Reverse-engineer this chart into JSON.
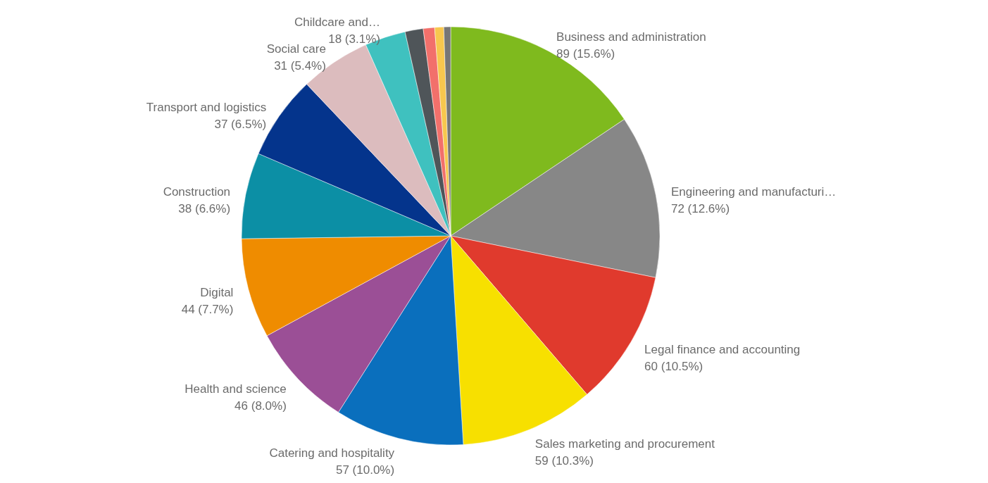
{
  "chart_data": {
    "type": "pie",
    "categories": [
      "Business and administration",
      "Engineering and manufacturi…",
      "Legal finance and accounting",
      "Sales marketing and procurement",
      "Catering and hospitality",
      "Health and science",
      "Digital",
      "Construction",
      "Transport and logistics",
      "Social care",
      "Childcare and…",
      null,
      null,
      null,
      null
    ],
    "values": [
      89,
      72,
      60,
      59,
      57,
      46,
      44,
      38,
      37,
      31,
      18,
      8,
      5,
      4,
      3
    ],
    "value_labels": [
      "89 (15.6%)",
      "72 (12.6%)",
      "60 (10.5%)",
      "59 (10.3%)",
      "57 (10.0%)",
      "46 (8.0%)",
      "44 (7.7%)",
      "38 (6.6%)",
      "37 (6.5%)",
      "31 (5.4%)",
      "18 (3.1%)",
      null,
      null,
      null,
      null
    ],
    "colors": [
      "#7fba1e",
      "#878787",
      "#e03a2d",
      "#f7e000",
      "#0a6fbd",
      "#9b4f96",
      "#ef8c00",
      "#0c8fa5",
      "#04348c",
      "#dcbcbe",
      "#3fc1bf",
      "#4f5559",
      "#f2706b",
      "#f7c74e",
      "#767676"
    ],
    "legend": false
  }
}
